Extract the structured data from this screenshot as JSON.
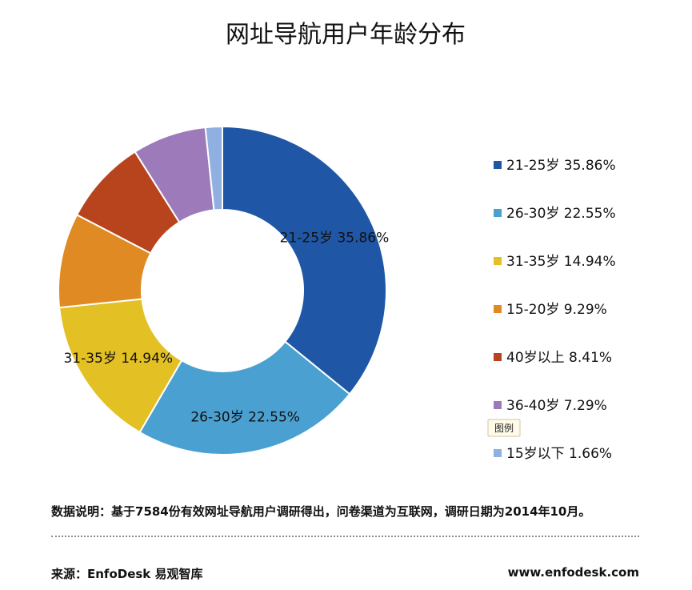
{
  "chart_data": {
    "type": "pie",
    "variant": "donut",
    "title": "网址导航用户年龄分布",
    "categories": [
      "21-25岁",
      "26-30岁",
      "31-35岁",
      "15-20岁",
      "40岁以上",
      "36-40岁",
      "15岁以下"
    ],
    "values": [
      35.86,
      22.55,
      14.94,
      9.29,
      8.41,
      7.29,
      1.66
    ],
    "value_labels": [
      "35.86%",
      "22.55%",
      "14.94%",
      "9.29%",
      "8.41%",
      "7.29%",
      "1.66%"
    ],
    "colors": [
      "#1f57a6",
      "#4aa0d1",
      "#e3c024",
      "#e08a23",
      "#b7441d",
      "#9d7bbb",
      "#8fb0e0"
    ],
    "legend_position": "right",
    "slice_labels": [
      {
        "category": "21-25岁",
        "text": "21-25岁  35.86%"
      },
      {
        "category": "26-30岁",
        "text": "26-30岁  22.55%"
      },
      {
        "category": "31-35岁",
        "text": "31-35岁  14.94%"
      }
    ],
    "legend_entries": [
      "21-25岁  35.86%",
      "26-30岁  22.55%",
      "31-35岁  14.94%",
      "15-20岁  9.29%",
      "40岁以上  8.41%",
      "36-40岁  7.29%",
      "15岁以下  1.66%"
    ],
    "tooltip": "图例"
  },
  "footer": {
    "note": "数据说明：基于7584份有效网址导航用户调研得出，问卷渠道为互联网，调研日期为2014年10月。",
    "source": "来源：EnfoDesk 易观智库",
    "website": "www.enfodesk.com"
  }
}
